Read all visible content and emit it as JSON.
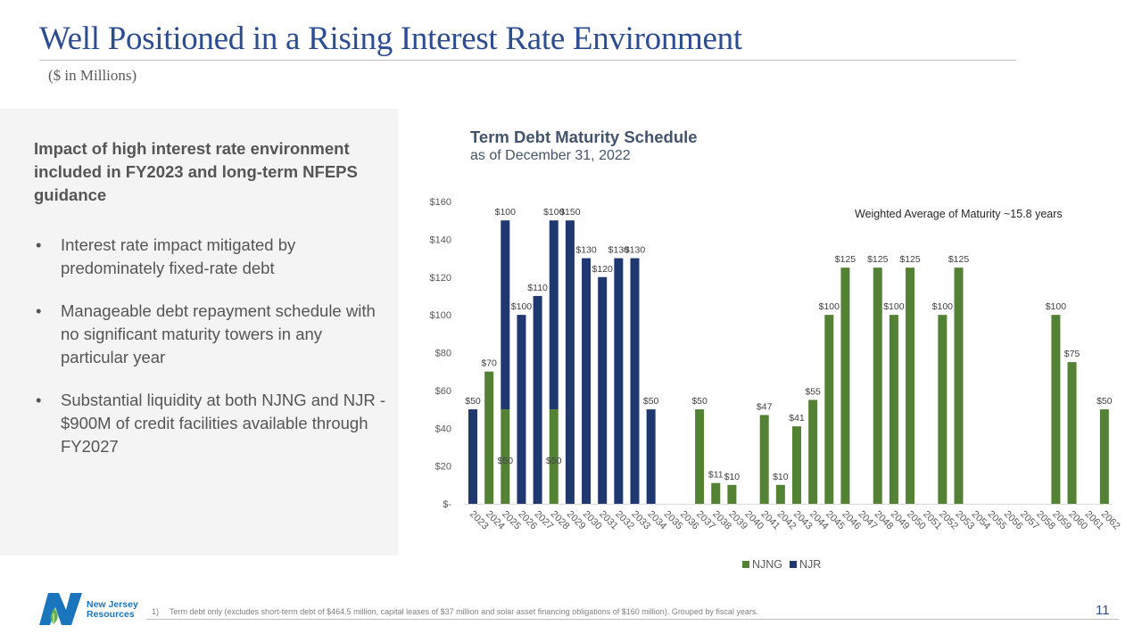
{
  "header": {
    "title": "Well Positioned in a Rising Interest Rate Environment",
    "subtitle": "($ in Millions)"
  },
  "panel": {
    "heading": "Impact of high interest rate environment included in FY2023 and long-term NFEPS guidance",
    "bullet_glyph": "•",
    "bullets": [
      "Interest rate impact mitigated by predominately  fixed-rate debt",
      "Manageable debt repayment schedule with no significant maturity towers in any particular year",
      "Substantial liquidity at both NJNG and NJR - $900M of credit facilities available through FY2027"
    ]
  },
  "chart_data": {
    "type": "bar",
    "stacked": true,
    "title": "Term Debt Maturity Schedule",
    "subtitle": "as of December 31, 2022",
    "annotation": "Weighted Average of Maturity ~15.8 years",
    "xlabel": "",
    "ylabel": "",
    "ylim": [
      0,
      160
    ],
    "yticks": [
      0,
      20,
      40,
      60,
      80,
      100,
      120,
      140,
      160
    ],
    "ytick_labels": [
      "$-",
      "$20",
      "$40",
      "$60",
      "$80",
      "$100",
      "$120",
      "$140",
      "$160"
    ],
    "grid": false,
    "legend_position": "bottom",
    "categories": [
      "2023",
      "2024",
      "2025",
      "2026",
      "2027",
      "2028",
      "2029",
      "2030",
      "2031",
      "2032",
      "2033",
      "2034",
      "2035",
      "2036",
      "2037",
      "2038",
      "2039",
      "2040",
      "2041",
      "2042",
      "2043",
      "2044",
      "2045",
      "2046",
      "2047",
      "2048",
      "2049",
      "2050",
      "2051",
      "2052",
      "2053",
      "2054",
      "2055",
      "2056",
      "2057",
      "2058",
      "2059",
      "2060",
      "2061",
      "2062"
    ],
    "series": [
      {
        "name": "NJNG",
        "color": "#548235",
        "values": [
          0,
          70,
          50,
          0,
          0,
          50,
          0,
          0,
          0,
          0,
          0,
          0,
          0,
          0,
          50,
          11,
          10,
          0,
          47,
          10,
          41,
          55,
          100,
          125,
          0,
          125,
          100,
          125,
          0,
          100,
          125,
          0,
          0,
          0,
          0,
          0,
          100,
          75,
          0,
          50
        ]
      },
      {
        "name": "NJR",
        "color": "#1F3870",
        "values": [
          50,
          0,
          100,
          100,
          110,
          100,
          150,
          130,
          120,
          130,
          130,
          50,
          0,
          0,
          0,
          0,
          0,
          0,
          0,
          0,
          0,
          0,
          0,
          0,
          0,
          0,
          0,
          0,
          0,
          0,
          0,
          0,
          0,
          0,
          0,
          0,
          0,
          0,
          0,
          0
        ]
      }
    ],
    "value_label_prefix": "$"
  },
  "legend": [
    {
      "name": "NJNG",
      "color": "#548235"
    },
    {
      "name": "NJR",
      "color": "#1F3870"
    }
  ],
  "footer": {
    "logo_line1": "New Jersey",
    "logo_line2": "Resources",
    "footnote_number": "1)",
    "footnote": "Term debt only (excludes short-term debt of $464.5 million,  capital leases of $37 million  and solar asset financing obligations of $160 million).  Grouped by fiscal years.",
    "page_number": "11"
  }
}
